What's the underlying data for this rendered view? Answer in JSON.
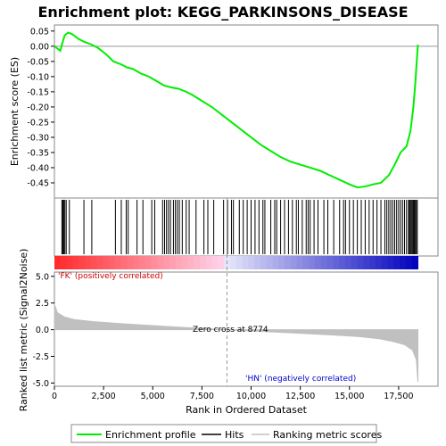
{
  "chart_data": {
    "type": "line",
    "title": "Enrichment plot: KEGG_PARKINSONS_DISEASE",
    "es_panel": {
      "ylabel": "Enrichment score (ES)",
      "ylim": [
        -0.5,
        0.07
      ],
      "yticks": [
        "0.05",
        "0.00",
        "-0.05",
        "-0.10",
        "-0.15",
        "-0.20",
        "-0.25",
        "-0.30",
        "-0.35",
        "-0.40",
        "-0.45"
      ],
      "ytick_values": [
        0.05,
        0.0,
        -0.05,
        -0.1,
        -0.15,
        -0.2,
        -0.25,
        -0.3,
        -0.35,
        -0.4,
        -0.45
      ],
      "line_color": "#00ee00",
      "series": [
        {
          "x": 0,
          "y": 0.0
        },
        {
          "x": 300,
          "y": -0.015
        },
        {
          "x": 380,
          "y": 0.005
        },
        {
          "x": 450,
          "y": 0.02
        },
        {
          "x": 520,
          "y": 0.035
        },
        {
          "x": 600,
          "y": 0.04
        },
        {
          "x": 700,
          "y": 0.045
        },
        {
          "x": 900,
          "y": 0.04
        },
        {
          "x": 1200,
          "y": 0.025
        },
        {
          "x": 1500,
          "y": 0.015
        },
        {
          "x": 1900,
          "y": 0.005
        },
        {
          "x": 2200,
          "y": -0.005
        },
        {
          "x": 2600,
          "y": -0.025
        },
        {
          "x": 3000,
          "y": -0.05
        },
        {
          "x": 3400,
          "y": -0.06
        },
        {
          "x": 3700,
          "y": -0.07
        },
        {
          "x": 4000,
          "y": -0.075
        },
        {
          "x": 4400,
          "y": -0.09
        },
        {
          "x": 4800,
          "y": -0.1
        },
        {
          "x": 5200,
          "y": -0.115
        },
        {
          "x": 5600,
          "y": -0.13
        },
        {
          "x": 5900,
          "y": -0.135
        },
        {
          "x": 6300,
          "y": -0.14
        },
        {
          "x": 6700,
          "y": -0.15
        },
        {
          "x": 7000,
          "y": -0.16
        },
        {
          "x": 7500,
          "y": -0.18
        },
        {
          "x": 8000,
          "y": -0.2
        },
        {
          "x": 8500,
          "y": -0.225
        },
        {
          "x": 9000,
          "y": -0.25
        },
        {
          "x": 9500,
          "y": -0.275
        },
        {
          "x": 10000,
          "y": -0.3
        },
        {
          "x": 10500,
          "y": -0.325
        },
        {
          "x": 11000,
          "y": -0.345
        },
        {
          "x": 11500,
          "y": -0.365
        },
        {
          "x": 12000,
          "y": -0.38
        },
        {
          "x": 12500,
          "y": -0.39
        },
        {
          "x": 13000,
          "y": -0.4
        },
        {
          "x": 13500,
          "y": -0.41
        },
        {
          "x": 14000,
          "y": -0.425
        },
        {
          "x": 14500,
          "y": -0.44
        },
        {
          "x": 15000,
          "y": -0.455
        },
        {
          "x": 15400,
          "y": -0.465
        },
        {
          "x": 15800,
          "y": -0.462
        },
        {
          "x": 16200,
          "y": -0.455
        },
        {
          "x": 16600,
          "y": -0.45
        },
        {
          "x": 17000,
          "y": -0.425
        },
        {
          "x": 17300,
          "y": -0.39
        },
        {
          "x": 17600,
          "y": -0.35
        },
        {
          "x": 17900,
          "y": -0.33
        },
        {
          "x": 18100,
          "y": -0.28
        },
        {
          "x": 18250,
          "y": -0.2
        },
        {
          "x": 18350,
          "y": -0.12
        },
        {
          "x": 18420,
          "y": -0.05
        },
        {
          "x": 18480,
          "y": 0.005
        }
      ]
    },
    "hits": [
      380,
      430,
      480,
      530,
      600,
      760,
      1500,
      1900,
      3100,
      3400,
      3650,
      3750,
      4200,
      4500,
      4950,
      5100,
      5500,
      5600,
      5700,
      5800,
      5900,
      6050,
      6150,
      6250,
      6350,
      6500,
      6700,
      6850,
      7200,
      7600,
      7800,
      8100,
      8600,
      8800,
      9000,
      9100,
      9400,
      9600,
      9800,
      10000,
      10200,
      10400,
      10600,
      10700,
      11000,
      11200,
      11300,
      11500,
      11700,
      11900,
      12100,
      12300,
      12400,
      12600,
      12800,
      12900,
      13000,
      13200,
      13400,
      13700,
      13900,
      14200,
      14500,
      14700,
      14800,
      15000,
      15200,
      15400,
      15600,
      15800,
      16000,
      16200,
      16400,
      16600,
      16800,
      16900,
      17000,
      17100,
      17200,
      17300,
      17400,
      17500,
      17600,
      17700,
      17800,
      17900,
      18000,
      18050,
      18100,
      18150,
      18200,
      18250,
      18300,
      18350,
      18400,
      18450
    ],
    "metric_panel": {
      "ylabel": "Ranked list metric (Signal2Noise)",
      "ylim": [
        -5.3,
        5.4
      ],
      "yticks": [
        "5.0",
        "2.5",
        "0.0",
        "-2.5",
        "-5.0"
      ],
      "ytick_values": [
        5.0,
        2.5,
        0.0,
        -2.5,
        -5.0
      ],
      "fill_color": "#c0c0c0",
      "series": [
        {
          "x": 0,
          "y": 2.4
        },
        {
          "x": 150,
          "y": 1.6
        },
        {
          "x": 500,
          "y": 1.2
        },
        {
          "x": 1000,
          "y": 0.95
        },
        {
          "x": 2000,
          "y": 0.75
        },
        {
          "x": 3500,
          "y": 0.55
        },
        {
          "x": 5000,
          "y": 0.38
        },
        {
          "x": 6500,
          "y": 0.22
        },
        {
          "x": 8000,
          "y": 0.07
        },
        {
          "x": 8774,
          "y": 0.0
        },
        {
          "x": 10000,
          "y": -0.12
        },
        {
          "x": 12000,
          "y": -0.3
        },
        {
          "x": 14000,
          "y": -0.48
        },
        {
          "x": 15500,
          "y": -0.65
        },
        {
          "x": 16500,
          "y": -0.85
        },
        {
          "x": 17200,
          "y": -1.1
        },
        {
          "x": 17800,
          "y": -1.4
        },
        {
          "x": 18200,
          "y": -1.9
        },
        {
          "x": 18400,
          "y": -2.8
        },
        {
          "x": 18480,
          "y": -4.9
        }
      ],
      "zero_cross_label": "Zero cross at 8774",
      "zero_cross": 8774,
      "pos_label": "'FK' (positively correlated)",
      "neg_label": "'HN' (negatively correlated)",
      "pos_color": "#cc0000",
      "neg_color": "#0000cc"
    },
    "x_axis": {
      "xlabel": "Rank in Ordered Dataset",
      "xlim": [
        0,
        19500
      ],
      "xticks": [
        "0",
        "2,500",
        "5,000",
        "7,500",
        "10,000",
        "12,500",
        "15,000",
        "17,500"
      ],
      "xtick_values": [
        0,
        2500,
        5000,
        7500,
        10000,
        12500,
        15000,
        17500
      ],
      "n_genes": 18480
    },
    "legend": [
      {
        "label": "Enrichment profile",
        "color": "#00ee00"
      },
      {
        "label": "Hits",
        "color": "#000000"
      },
      {
        "label": "Ranking metric scores",
        "color": "#c0c0c0"
      }
    ]
  }
}
